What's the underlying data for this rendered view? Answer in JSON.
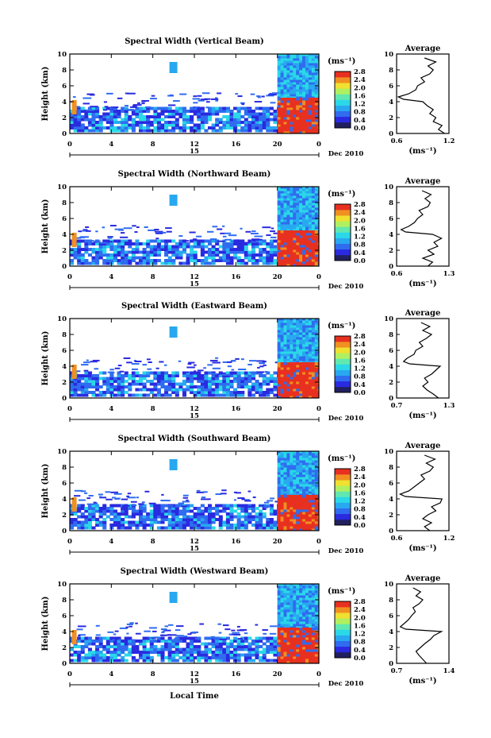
{
  "figure": {
    "xlabel": "Local Time",
    "colors": [
      "#202060",
      "#2a2ae0",
      "#2f6cf0",
      "#28a8f0",
      "#2ad8e8",
      "#60e8b0",
      "#b0f060",
      "#f0e030",
      "#f09020",
      "#e83020"
    ]
  },
  "chart_data": [
    {
      "type": "heatmap",
      "title": "Spectral Width (Vertical Beam)",
      "ylabel": "Height (km)",
      "ylim": [
        0,
        10
      ],
      "yticks": [
        "0",
        "2",
        "4",
        "6",
        "8",
        "10"
      ],
      "xticks": [
        "0",
        "4",
        "8",
        "12",
        "16",
        "20",
        "0"
      ],
      "date_label": "15",
      "month_label": "Dec 2010",
      "colorbar_unit": "(ms⁻¹)",
      "colorbar_ticks": [
        "0.0",
        "0.4",
        "0.8",
        "1.2",
        "1.6",
        "2.0",
        "2.4",
        "2.8"
      ],
      "avg_title": "Average",
      "avg_xlabel": "(ms⁻¹)",
      "avg_xticks": [
        "0.6",
        "1.2"
      ],
      "avg_xlim": [
        0.6,
        1.2
      ],
      "profile": {
        "height": [
          0,
          0.5,
          1,
          1.5,
          2,
          2.5,
          3,
          3.5,
          4,
          4.3,
          4.6,
          5,
          5.5,
          6,
          6.5,
          7,
          7.5,
          8,
          8.5,
          9,
          9.5
        ],
        "value": [
          1.15,
          1.08,
          1.12,
          1.02,
          1.05,
          0.98,
          1.02,
          0.95,
          0.9,
          0.68,
          0.62,
          0.74,
          0.82,
          0.84,
          0.92,
          0.88,
          0.98,
          1.02,
          0.96,
          1.05,
          0.92
        ]
      }
    },
    {
      "type": "heatmap",
      "title": "Spectral Width (Northward Beam)",
      "ylabel": "Height (km)",
      "ylim": [
        0,
        10
      ],
      "yticks": [
        "0",
        "2",
        "4",
        "6",
        "8",
        "10"
      ],
      "xticks": [
        "0",
        "4",
        "8",
        "12",
        "16",
        "20",
        "0"
      ],
      "date_label": "15",
      "month_label": "Dec 2010",
      "colorbar_unit": "(ms⁻¹)",
      "colorbar_ticks": [
        "0.0",
        "0.4",
        "0.8",
        "1.2",
        "1.6",
        "2.0",
        "2.4",
        "2.8"
      ],
      "avg_title": "Average",
      "avg_xlabel": "(ms⁻¹)",
      "avg_xticks": [
        "0.6",
        "1.3"
      ],
      "avg_xlim": [
        0.6,
        1.3
      ],
      "profile": {
        "height": [
          0,
          0.5,
          1,
          1.5,
          2,
          2.5,
          3,
          3.5,
          4,
          4.3,
          4.6,
          5,
          5.5,
          6,
          6.5,
          7,
          7.5,
          8,
          8.5,
          9,
          9.5
        ],
        "value": [
          1.02,
          1.08,
          0.95,
          1.1,
          1.02,
          1.15,
          1.1,
          1.2,
          1.08,
          0.72,
          0.66,
          0.76,
          0.84,
          0.88,
          0.95,
          0.9,
          1.02,
          1.05,
          0.98,
          1.06,
          0.94
        ]
      }
    },
    {
      "type": "heatmap",
      "title": "Spectral Width (Eastward Beam)",
      "ylabel": "Height (km)",
      "ylim": [
        0,
        10
      ],
      "yticks": [
        "0",
        "2",
        "4",
        "6",
        "8",
        "10"
      ],
      "xticks": [
        "0",
        "4",
        "8",
        "12",
        "16",
        "20",
        "0"
      ],
      "date_label": "15",
      "month_label": "Dec 2010",
      "colorbar_unit": "(ms⁻¹)",
      "colorbar_ticks": [
        "0.0",
        "0.4",
        "0.8",
        "1.2",
        "1.6",
        "2.0",
        "2.4",
        "2.8"
      ],
      "avg_title": "Average",
      "avg_xlabel": "(ms⁻¹)",
      "avg_xticks": [
        "0.7",
        "1.3"
      ],
      "avg_xlim": [
        0.7,
        1.3
      ],
      "profile": {
        "height": [
          0,
          0.5,
          1,
          1.5,
          2,
          2.5,
          3,
          3.5,
          4,
          4.3,
          4.6,
          5,
          5.5,
          6,
          6.5,
          7,
          7.5,
          8,
          8.5,
          9,
          9.5
        ],
        "value": [
          1.18,
          1.12,
          1.05,
          1.0,
          1.06,
          1.02,
          1.1,
          1.15,
          1.2,
          0.85,
          0.78,
          0.82,
          0.9,
          0.92,
          1.0,
          0.96,
          1.04,
          1.1,
          1.0,
          1.08,
          0.98
        ]
      }
    },
    {
      "type": "heatmap",
      "title": "Spectral Width (Southward Beam)",
      "ylabel": "Height (km)",
      "ylim": [
        0,
        10
      ],
      "yticks": [
        "0",
        "2",
        "4",
        "6",
        "8",
        "10"
      ],
      "xticks": [
        "0",
        "4",
        "8",
        "12",
        "16",
        "20",
        "0"
      ],
      "date_label": "15",
      "month_label": "Dec 2010",
      "colorbar_unit": "(ms⁻¹)",
      "colorbar_ticks": [
        "0.0",
        "0.4",
        "0.8",
        "1.2",
        "1.6",
        "2.0",
        "2.4",
        "2.8"
      ],
      "avg_title": "Average",
      "avg_xlabel": "(ms⁻¹)",
      "avg_xticks": [
        "0.6",
        "1.2"
      ],
      "avg_xlim": [
        0.6,
        1.2
      ],
      "profile": {
        "height": [
          0,
          0.5,
          1,
          1.5,
          2,
          2.5,
          3,
          3.5,
          4,
          4.3,
          4.6,
          5,
          5.5,
          6,
          6.5,
          7,
          7.5,
          8,
          8.5,
          9,
          9.5
        ],
        "value": [
          0.98,
          0.92,
          1.0,
          0.9,
          0.96,
          1.05,
          1.0,
          1.1,
          1.12,
          0.7,
          0.64,
          0.74,
          0.8,
          0.86,
          0.92,
          0.88,
          0.98,
          1.02,
          0.94,
          1.04,
          0.92
        ]
      }
    },
    {
      "type": "heatmap",
      "title": "Spectral Width (Westward Beam)",
      "ylabel": "Height (km)",
      "ylim": [
        0,
        10
      ],
      "yticks": [
        "0",
        "2",
        "4",
        "6",
        "8",
        "10"
      ],
      "xticks": [
        "0",
        "4",
        "8",
        "12",
        "16",
        "20",
        "0"
      ],
      "date_label": "15",
      "month_label": "Dec 2010",
      "colorbar_unit": "(ms⁻¹)",
      "colorbar_ticks": [
        "0.0",
        "0.4",
        "0.8",
        "1.2",
        "1.6",
        "2.0",
        "2.4",
        "2.8"
      ],
      "avg_title": "Average",
      "avg_xlabel": "(ms⁻¹)",
      "avg_xticks": [
        "0.7",
        "1.4"
      ],
      "avg_xlim": [
        0.7,
        1.4
      ],
      "profile": {
        "height": [
          0,
          0.5,
          1,
          1.5,
          2,
          2.5,
          3,
          3.5,
          4,
          4.3,
          4.6,
          5,
          5.5,
          6,
          6.5,
          7,
          7.5,
          8,
          8.5,
          9,
          9.5
        ],
        "value": [
          1.1,
          1.05,
          1.0,
          0.96,
          1.02,
          1.08,
          1.15,
          1.2,
          1.3,
          0.82,
          0.75,
          0.8,
          0.86,
          0.9,
          0.95,
          0.92,
          1.0,
          1.05,
          0.96,
          1.02,
          0.92
        ]
      }
    }
  ]
}
